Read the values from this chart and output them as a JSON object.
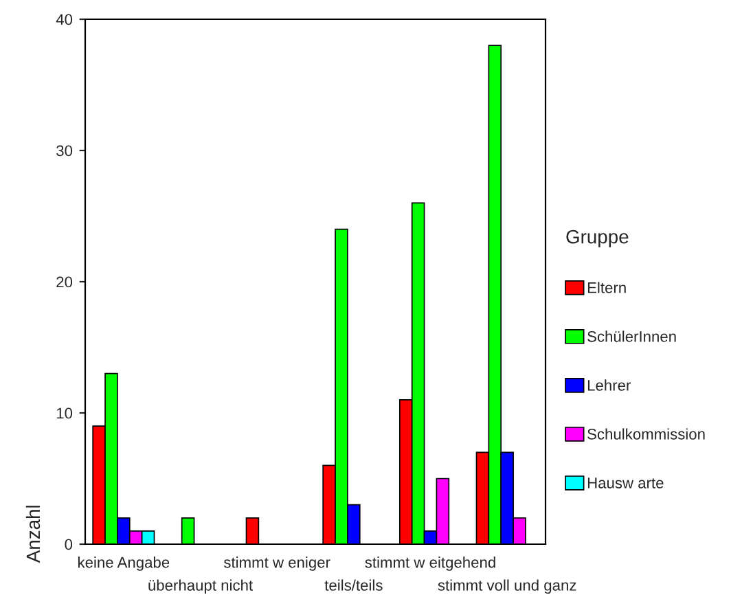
{
  "chart_data": {
    "type": "bar",
    "ylabel": "Anzahl",
    "legend_title": "Gruppe",
    "legend": "right",
    "grid": false,
    "categories": [
      "keine Angabe",
      "überhaupt nicht",
      "stimmt w eniger",
      "teils/teils",
      "stimmt w eitgehend",
      "stimmt voll und ganz"
    ],
    "ylim": [
      0,
      40
    ],
    "yticks": [
      0,
      10,
      20,
      30,
      40
    ],
    "series": [
      {
        "name": "Eltern",
        "color": "#ff0000",
        "values": [
          9,
          0,
          2,
          6,
          11,
          7
        ]
      },
      {
        "name": "SchülerInnen",
        "color": "#00ff00",
        "values": [
          13,
          2,
          0,
          24,
          26,
          38
        ]
      },
      {
        "name": "Lehrer",
        "color": "#0000ff",
        "values": [
          2,
          0,
          0,
          3,
          1,
          7
        ]
      },
      {
        "name": "Schulkommission",
        "color": "#ff00ff",
        "values": [
          1,
          0,
          0,
          0,
          5,
          2
        ]
      },
      {
        "name": "Hausw arte",
        "color": "#00ffff",
        "values": [
          1,
          0,
          0,
          0,
          0,
          0
        ]
      }
    ]
  }
}
